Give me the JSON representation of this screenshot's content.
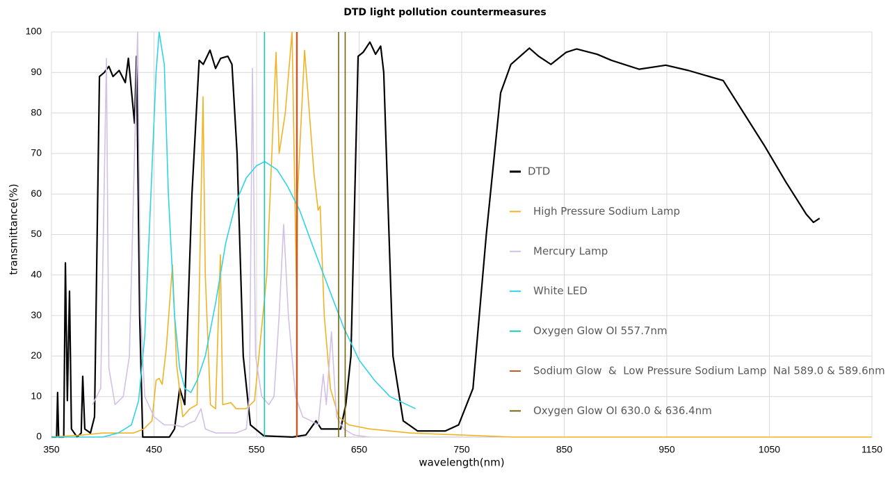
{
  "chart_data": {
    "type": "line",
    "title": "DTD light pollution countermeasures",
    "x_label": "wavelength(nm)",
    "y_label": "transmittance(%)",
    "xlim": [
      350,
      1150
    ],
    "xticks": [
      350,
      450,
      550,
      650,
      750,
      850,
      950,
      1050,
      1150
    ],
    "ylim": [
      0,
      100
    ],
    "yticks": [
      0,
      10,
      20,
      30,
      40,
      50,
      60,
      70,
      80,
      90,
      100
    ],
    "grid": true,
    "legend": "right",
    "series": [
      {
        "name": "DTD",
        "color": "#000000",
        "x": [
          350,
          355,
          356,
          357,
          362,
          363.6,
          365.5,
          367.6,
          369.5,
          375,
          379,
          380.5,
          382.5,
          388,
          392,
          396.8,
          401.5,
          406,
          410,
          416,
          422,
          425,
          431,
          433,
          436,
          439,
          450,
          465,
          470,
          475,
          480,
          487,
          494,
          498,
          504.6,
          510,
          515,
          522,
          526,
          531,
          537,
          544,
          557,
          585,
          598,
          608,
          613,
          632,
          637,
          642,
          649,
          654,
          660.5,
          666,
          671,
          674,
          683,
          693,
          707,
          734,
          747,
          761,
          774,
          788,
          798,
          816,
          825,
          837,
          852,
          862,
          882,
          896,
          923,
          949,
          971,
          1005,
          1025,
          1045,
          1066,
          1086,
          1093,
          1099
        ],
        "values": [
          0,
          0,
          11,
          0,
          0,
          43,
          9,
          36,
          2,
          0,
          1,
          15,
          2,
          1,
          5,
          89,
          90,
          91.5,
          89,
          90.5,
          87.5,
          93.5,
          77.5,
          94,
          30,
          0,
          0,
          0,
          2,
          12,
          8,
          60,
          93,
          92,
          95.5,
          91,
          93.5,
          94,
          92,
          70,
          20,
          3,
          0.3,
          0,
          0.5,
          4,
          2,
          2,
          8,
          20,
          94,
          95,
          97.5,
          94.5,
          96.5,
          90,
          20,
          4,
          1.5,
          1.5,
          3,
          12,
          50,
          85,
          92,
          96,
          94,
          92,
          95,
          95.8,
          94.5,
          93,
          90.8,
          91.8,
          90.5,
          88,
          80,
          72,
          63,
          55,
          53,
          54
        ]
      },
      {
        "name": "High Pressure Sodium Lamp",
        "color": "#f0b323",
        "x": [
          350,
          380,
          400,
          430,
          440,
          448,
          452,
          455,
          458,
          462,
          468,
          472,
          478,
          485,
          492,
          497.8,
          500,
          505,
          510,
          514.7,
          517,
          525,
          530,
          540,
          548,
          560,
          569,
          572,
          578,
          584.6,
          589.3,
          590,
          596.8,
          600,
          606,
          610,
          612,
          616,
          622,
          630,
          640,
          660,
          700,
          750,
          800,
          1150
        ],
        "values": [
          0,
          0.5,
          1,
          1,
          2,
          4,
          14,
          14.5,
          13,
          22,
          42.5,
          18,
          5,
          7,
          8,
          84,
          40,
          8,
          7,
          45,
          8,
          8.5,
          7,
          7,
          9,
          40,
          95,
          70,
          80,
          100,
          30,
          60,
          95.5,
          85,
          65,
          56,
          57,
          30,
          12,
          5,
          3,
          2,
          1,
          0.5,
          0,
          0
        ]
      },
      {
        "name": "Mercury Lamp",
        "color": "#d3c0e6",
        "x": [
          390,
          398,
          403.6,
          406,
          412,
          420,
          426,
          434,
          437,
          441,
          450,
          460,
          470,
          478,
          485,
          490,
          495.8,
          500,
          510,
          530,
          540,
          543,
          546,
          549,
          555,
          562,
          567,
          572,
          576.4,
          581,
          588,
          595,
          603,
          610,
          615,
          618,
          623,
          628,
          635,
          645,
          660
        ],
        "values": [
          8,
          12,
          93.5,
          17,
          8,
          10,
          20,
          100,
          30,
          10,
          5,
          3,
          3,
          2.5,
          3.5,
          4,
          7,
          2,
          1,
          1,
          2,
          10,
          91,
          20,
          10,
          8,
          10,
          30,
          52.5,
          30,
          10,
          5,
          4,
          3,
          15.5,
          8,
          26,
          5,
          2,
          0.5,
          0
        ]
      },
      {
        "name": "White LED",
        "color": "#2ed3e6",
        "x": [
          350,
          400,
          415,
          428,
          435,
          441,
          447,
          452,
          455,
          460,
          464,
          470,
          475,
          480,
          486,
          492,
          500,
          510,
          520,
          530,
          540,
          550,
          558,
          570,
          580,
          592,
          605,
          620,
          635,
          650,
          665,
          680,
          705
        ],
        "values": [
          0,
          0,
          1,
          3,
          9,
          25,
          60,
          90,
          100,
          92,
          60,
          30,
          17,
          12,
          11,
          14,
          20,
          33,
          48,
          58,
          64,
          67,
          68,
          66,
          62,
          56,
          47,
          37,
          27,
          19,
          14,
          10,
          7
        ]
      },
      {
        "name": "Oxygen Glow OI 557.7nm",
        "color": "#17c9b4",
        "x": [
          557.7,
          557.7
        ],
        "values": [
          0,
          100
        ]
      },
      {
        "name": "Sodium Glow  &  Low Pressure Sodium Lamp  NaI 589.0 & 589.6nm",
        "color": "#c55a2a",
        "x": [
          589.0,
          589.0,
          null,
          589.6,
          589.6
        ],
        "values": [
          0,
          100,
          null,
          0,
          100
        ]
      },
      {
        "name": "Oxygen Glow OI 630.0 & 636.4nm",
        "color": "#7a6410",
        "x": [
          630.0,
          630.0,
          null,
          636.4,
          636.4
        ],
        "values": [
          0,
          100,
          null,
          0,
          100
        ]
      }
    ]
  }
}
